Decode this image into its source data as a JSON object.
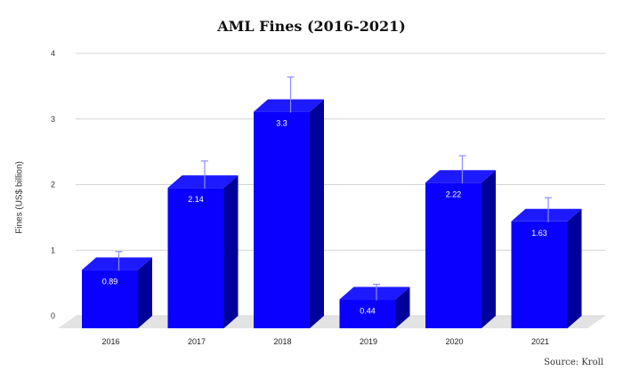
{
  "chart_data": {
    "type": "bar",
    "title": "AML Fines (2016-2021)",
    "ylabel": "Fines (US$ billion)",
    "xlabel": "",
    "categories": [
      "2016",
      "2017",
      "2018",
      "2019",
      "2020",
      "2021"
    ],
    "values": [
      0.89,
      2.14,
      3.3,
      0.44,
      2.22,
      1.63
    ],
    "value_labels": [
      "0.89",
      "2.14",
      "3.3",
      "0.44",
      "2.22",
      "1.63"
    ],
    "error_upper": [
      0.98,
      2.36,
      3.64,
      0.48,
      2.44,
      1.8
    ],
    "ylim": [
      0,
      4
    ],
    "yticks": [
      "0",
      "1",
      "2",
      "3",
      "4"
    ],
    "grid": true,
    "bar_color": "#0a00ff",
    "source": "Source: Kroll"
  }
}
